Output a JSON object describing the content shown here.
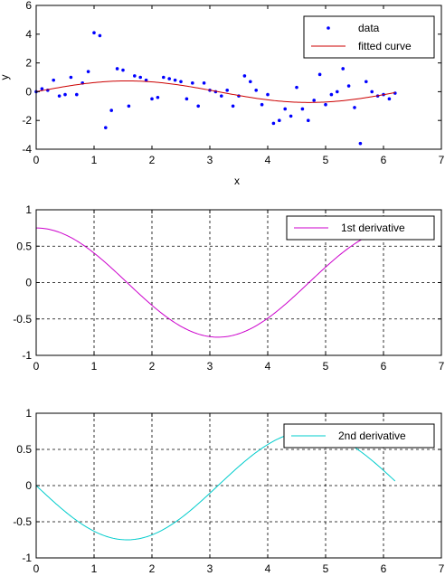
{
  "chart_data": [
    {
      "type": "scatter",
      "xlabel": "x",
      "ylabel": "y",
      "xlim": [
        0,
        7
      ],
      "ylim": [
        -4,
        6
      ],
      "xticks": [
        0,
        1,
        2,
        3,
        4,
        5,
        6,
        7
      ],
      "yticks": [
        -4,
        -2,
        0,
        2,
        4,
        6
      ],
      "grid": false,
      "legend_position": "top-right",
      "series": [
        {
          "name": "data",
          "style": "markers",
          "color": "#0000ff",
          "x": [
            0.0,
            0.1,
            0.2,
            0.3,
            0.4,
            0.5,
            0.6,
            0.7,
            0.8,
            0.9,
            1.0,
            1.1,
            1.2,
            1.3,
            1.4,
            1.5,
            1.6,
            1.7,
            1.8,
            1.9,
            2.0,
            2.1,
            2.2,
            2.3,
            2.4,
            2.5,
            2.6,
            2.7,
            2.8,
            2.9,
            3.0,
            3.1,
            3.2,
            3.3,
            3.4,
            3.5,
            3.6,
            3.7,
            3.8,
            3.9,
            4.0,
            4.1,
            4.2,
            4.3,
            4.4,
            4.5,
            4.6,
            4.7,
            4.8,
            4.9,
            5.0,
            5.1,
            5.2,
            5.3,
            5.4,
            5.5,
            5.6,
            5.7,
            5.8,
            5.9,
            6.0,
            6.1,
            6.2
          ],
          "y": [
            0.0,
            0.2,
            0.1,
            0.8,
            -0.3,
            -0.2,
            1.0,
            -0.2,
            0.6,
            1.4,
            4.1,
            3.9,
            -2.5,
            -1.3,
            1.6,
            1.5,
            -1.0,
            1.1,
            1.0,
            0.8,
            -0.5,
            -0.4,
            1.0,
            0.9,
            0.8,
            0.7,
            -0.5,
            0.6,
            -1.0,
            0.6,
            0.1,
            0.0,
            -0.3,
            0.1,
            -1.0,
            -0.3,
            1.1,
            0.7,
            0.1,
            -0.9,
            -0.2,
            -2.2,
            -2.0,
            -1.2,
            -1.7,
            0.3,
            -1.2,
            -2.0,
            -0.6,
            1.2,
            -0.9,
            -0.2,
            0.0,
            1.6,
            0.4,
            -1.1,
            -3.6,
            0.7,
            0.0,
            -0.3,
            -0.2,
            -0.5,
            -0.1
          ]
        },
        {
          "name": "fitted curve",
          "style": "line",
          "color": "#cc0000",
          "function": "0.75*sin(x)",
          "x_range": [
            0,
            6.2
          ]
        }
      ]
    },
    {
      "type": "line",
      "xlim": [
        0,
        7
      ],
      "ylim": [
        -1,
        1
      ],
      "xticks": [
        0,
        1,
        2,
        3,
        4,
        5,
        6,
        7
      ],
      "yticks": [
        -1,
        -0.5,
        0,
        0.5,
        1
      ],
      "grid": true,
      "legend_position": "top-right",
      "series": [
        {
          "name": "1st derivative",
          "color": "#cc00cc",
          "function": "0.75*cos(x)",
          "x_range": [
            0,
            6.2
          ]
        }
      ]
    },
    {
      "type": "line",
      "xlim": [
        0,
        7
      ],
      "ylim": [
        -1,
        1
      ],
      "xticks": [
        0,
        1,
        2,
        3,
        4,
        5,
        6,
        7
      ],
      "yticks": [
        -1,
        -0.5,
        0,
        0.5,
        1
      ],
      "grid": true,
      "legend_position": "top-right",
      "series": [
        {
          "name": "2nd derivative",
          "color": "#00cccc",
          "function": "-0.75*sin(x)",
          "x_range": [
            0,
            6.2
          ]
        }
      ]
    }
  ]
}
